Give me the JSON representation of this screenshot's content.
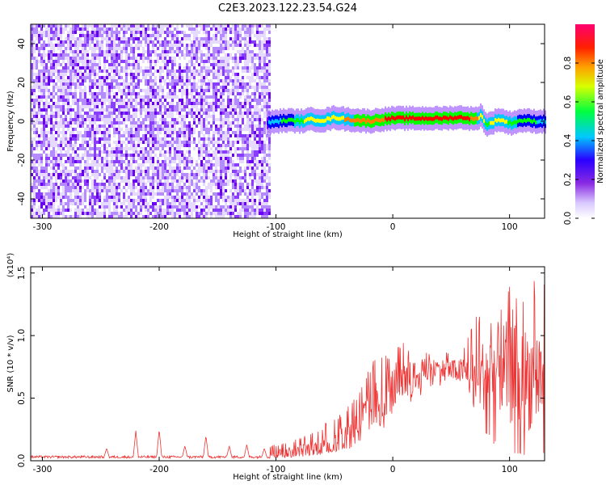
{
  "title": "C2E3.2023.122.23.54.G24",
  "chart_data": [
    {
      "type": "heatmap",
      "xlabel": "Height of straight line (km)",
      "ylabel": "Frequency (Hz)",
      "xlim": [
        -310,
        130
      ],
      "ylim": [
        -50,
        50
      ],
      "xticks": [
        -300,
        -200,
        -100,
        0,
        100
      ],
      "xticklabels": [
        "-300",
        "-200",
        "-100",
        "0",
        "100"
      ],
      "yticks": [
        -40,
        -20,
        0,
        20,
        40
      ],
      "yticklabels": [
        "-40",
        "-20",
        "0",
        "20",
        "40"
      ],
      "colorbar": {
        "label": "Normalized spectral amplitude",
        "range": [
          0.0,
          1.0
        ],
        "ticks": [
          0.0,
          0.2,
          0.4,
          0.6,
          0.8
        ],
        "ticklabels": [
          "0.0",
          "0.2",
          "0.4",
          "0.6",
          "0.8"
        ],
        "colormap": [
          "#c8b4ff",
          "#7a00ff",
          "#0000ff",
          "#00c8ff",
          "#00ff00",
          "#ffff00",
          "#ff8000",
          "#ff0000",
          "#ff0066"
        ]
      },
      "noise_region": {
        "x": [
          -310,
          -105
        ],
        "y": [
          -50,
          50
        ],
        "level": 0.2
      },
      "signal_trace": {
        "x": [
          -108,
          -100,
          -90,
          -80,
          -70,
          -60,
          -50,
          -40,
          -30,
          -20,
          -10,
          0,
          20,
          40,
          60,
          70,
          75,
          80,
          90,
          100,
          110,
          120,
          130
        ],
        "frequency": [
          -1,
          0,
          0.5,
          0,
          1,
          0.5,
          2,
          1,
          0.5,
          0,
          1,
          1.5,
          1.5,
          1.5,
          2,
          1,
          3,
          -2,
          1,
          -1,
          0.5,
          0,
          0
        ],
        "amplitude": [
          0.3,
          0.4,
          0.5,
          0.55,
          0.6,
          0.6,
          0.65,
          0.7,
          0.75,
          0.78,
          0.8,
          0.85,
          0.88,
          0.9,
          0.9,
          0.75,
          0.6,
          0.55,
          0.6,
          0.55,
          0.5,
          0.45,
          0.4
        ]
      }
    },
    {
      "type": "line",
      "xlabel": "Height of straight line (km)",
      "ylabel": "SNR (10 * v/v)",
      "y_multiplier": "(x10⁴)",
      "xlim": [
        -310,
        130
      ],
      "ylim": [
        0,
        1.55
      ],
      "xticks": [
        -300,
        -200,
        -100,
        0,
        100
      ],
      "xticklabels": [
        "-300",
        "-200",
        "-100",
        "0",
        "100"
      ],
      "yticks": [
        0.0,
        0.5,
        1.0,
        1.5
      ],
      "yticklabels": [
        "0.0",
        "0.5",
        "1.0",
        "1.5"
      ],
      "color": "#ee3333",
      "baseline": {
        "x": [
          -310,
          -105
        ],
        "y": 0.03
      },
      "peaks": [
        {
          "x": -245,
          "y": 0.1
        },
        {
          "x": -220,
          "y": 0.24
        },
        {
          "x": -200,
          "y": 0.25
        },
        {
          "x": -178,
          "y": 0.12
        },
        {
          "x": -160,
          "y": 0.2
        },
        {
          "x": -140,
          "y": 0.12
        },
        {
          "x": -125,
          "y": 0.13
        },
        {
          "x": -110,
          "y": 0.1
        }
      ],
      "envelope": {
        "x": [
          -105,
          -80,
          -60,
          -40,
          -30,
          -20,
          -10,
          0,
          10,
          20,
          30,
          40,
          50,
          60,
          70,
          80,
          90,
          100,
          110,
          120,
          130
        ],
        "mean": [
          0.05,
          0.08,
          0.12,
          0.2,
          0.3,
          0.4,
          0.5,
          0.58,
          0.62,
          0.68,
          0.72,
          0.73,
          0.72,
          0.72,
          0.65,
          0.7,
          0.75,
          0.7,
          0.68,
          0.65,
          0.7
        ],
        "max": [
          0.12,
          0.18,
          0.28,
          0.45,
          0.58,
          0.75,
          0.9,
          0.88,
          0.95,
          0.9,
          0.9,
          0.9,
          0.88,
          0.92,
          1.15,
          1.2,
          1.3,
          1.45,
          1.3,
          1.5,
          1.45
        ],
        "min": [
          0.02,
          0.03,
          0.05,
          0.08,
          0.12,
          0.2,
          0.25,
          0.3,
          0.4,
          0.5,
          0.55,
          0.6,
          0.6,
          0.58,
          0.35,
          0.2,
          0.1,
          0.05,
          0.05,
          0.02,
          0.05
        ]
      }
    }
  ]
}
